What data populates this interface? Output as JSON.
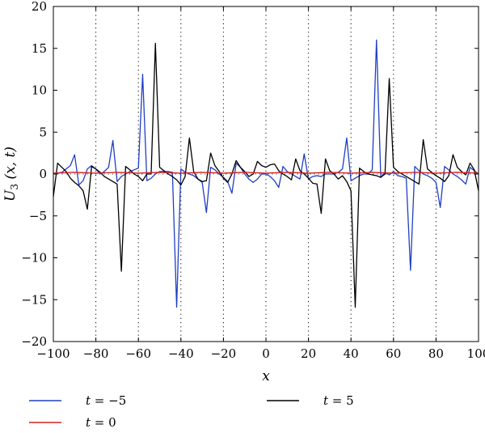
{
  "chart_data": {
    "type": "line",
    "xlabel": "x",
    "ylabel_main": "U",
    "ylabel_sub": "3",
    "ylabel_args": " (x, t)",
    "xlim": [
      -100,
      100
    ],
    "ylim": [
      -20,
      20
    ],
    "xticks": [
      -100,
      -80,
      -60,
      -40,
      -20,
      0,
      20,
      40,
      60,
      80,
      100
    ],
    "yticks": [
      -20,
      -15,
      -10,
      -5,
      0,
      5,
      10,
      15,
      20
    ],
    "grid": "vertical dotted lines at x ticks",
    "legend": [
      {
        "series": 0,
        "prefix": "t",
        "value": " = −5"
      },
      {
        "series": 2,
        "prefix": "t",
        "value": " = 5"
      },
      {
        "series": 1,
        "prefix": "t",
        "value": " = 0"
      }
    ],
    "series": [
      {
        "color": "#1f3fc4",
        "x": [
          -100,
          -96,
          -94,
          -92,
          -90,
          -88,
          -86,
          -84,
          -82,
          -80,
          -78,
          -76,
          -74,
          -72,
          -70,
          -68,
          -66,
          -64,
          -62,
          -60,
          -58,
          -56,
          -54,
          -52,
          -50,
          -48,
          -46,
          -44,
          -42,
          -40,
          -38,
          -36,
          -34,
          -32,
          -30,
          -28,
          -26,
          -24,
          -22,
          -20,
          -18,
          -16,
          -14,
          -12,
          -10,
          -8,
          -6,
          -4,
          -2,
          0,
          2,
          4,
          6,
          8,
          10,
          12,
          14,
          16,
          18,
          20,
          22,
          24,
          26,
          28,
          30,
          32,
          34,
          36,
          38,
          40,
          42,
          44,
          46,
          48,
          50,
          52,
          54,
          56,
          58,
          60,
          62,
          64,
          66,
          68,
          70,
          72,
          74,
          76,
          78,
          80,
          82,
          84,
          86,
          88,
          90,
          92,
          94,
          96,
          98,
          100
        ],
        "y": [
          0.0,
          0.2,
          0.6,
          1.0,
          2.3,
          -1.3,
          -0.8,
          0.6,
          1.0,
          0.6,
          0.0,
          0.3,
          0.8,
          4.0,
          -0.9,
          -0.3,
          0.0,
          0.3,
          0.5,
          0.7,
          11.9,
          -0.8,
          -0.5,
          0.0,
          0.3,
          0.3,
          0.3,
          0.2,
          -15.9,
          0.6,
          0.2,
          0.0,
          -0.2,
          -0.6,
          -1.0,
          -4.6,
          0.8,
          0.5,
          0.0,
          -0.4,
          -0.9,
          -2.3,
          1.3,
          0.8,
          0.0,
          -0.6,
          -1.0,
          -0.6,
          0.0,
          0.0,
          -0.3,
          -0.8,
          -1.6,
          0.9,
          0.3,
          0.0,
          -0.3,
          -0.6,
          2.4,
          -0.6,
          -0.3,
          -0.2,
          -0.3,
          0.0,
          0.0,
          0.0,
          0.2,
          0.6,
          4.3,
          -0.8,
          -0.5,
          -0.2,
          0.0,
          0.0,
          0.5,
          16.0,
          -0.4,
          0.2,
          -0.1,
          0.3,
          -0.2,
          -0.3,
          -0.5,
          -11.5,
          0.9,
          0.4,
          0.0,
          -0.2,
          -0.5,
          -1.0,
          -4.0,
          0.9,
          0.5,
          0.0,
          -0.3,
          -0.7,
          -1.2,
          0.8,
          0.4,
          0.0
        ]
      },
      {
        "color": "#d42020",
        "x": [
          -100,
          -90,
          -80,
          -70,
          -60,
          -50,
          -40,
          -30,
          -20,
          -10,
          0,
          10,
          20,
          30,
          40,
          50,
          60,
          70,
          80,
          90,
          100
        ],
        "y": [
          0.1,
          0.2,
          0.1,
          0.2,
          0.1,
          0.2,
          0.1,
          0.2,
          0.1,
          0.2,
          0.1,
          0.2,
          0.1,
          0.2,
          0.1,
          0.2,
          0.1,
          0.2,
          0.1,
          0.2,
          0.1
        ]
      },
      {
        "color": "#000000",
        "x": [
          -100,
          -98,
          -96,
          -94,
          -92,
          -90,
          -88,
          -86,
          -84,
          -82,
          -80,
          -78,
          -76,
          -74,
          -72,
          -70,
          -68,
          -66,
          -64,
          -62,
          -60,
          -58,
          -56,
          -54,
          -52,
          -50,
          -48,
          -46,
          -44,
          -42,
          -40,
          -38,
          -36,
          -34,
          -32,
          -30,
          -28,
          -26,
          -24,
          -22,
          -20,
          -18,
          -16,
          -14,
          -12,
          -10,
          -8,
          -6,
          -4,
          -2,
          0,
          2,
          4,
          6,
          8,
          10,
          12,
          14,
          16,
          18,
          20,
          22,
          24,
          26,
          28,
          30,
          32,
          34,
          36,
          38,
          40,
          42,
          44,
          46,
          48,
          50,
          52,
          54,
          56,
          58,
          60,
          62,
          64,
          66,
          68,
          70,
          72,
          74,
          76,
          78,
          80,
          82,
          84,
          86,
          88,
          90,
          92,
          94,
          96,
          98,
          100
        ],
        "y": [
          -2.7,
          1.3,
          0.8,
          0.3,
          -0.5,
          -1.0,
          -1.4,
          -2.0,
          -4.2,
          0.9,
          0.6,
          0.2,
          -0.3,
          -0.6,
          -0.9,
          -1.2,
          -11.6,
          0.9,
          0.5,
          0.0,
          -0.3,
          -0.8,
          0.0,
          0.0,
          15.6,
          0.8,
          0.4,
          0.0,
          -0.3,
          -0.7,
          -1.3,
          -0.3,
          4.3,
          0.3,
          -0.6,
          -0.9,
          -0.8,
          2.5,
          1.0,
          0.3,
          -0.5,
          -1.0,
          0.0,
          1.6,
          0.8,
          0.3,
          -0.3,
          0.0,
          1.5,
          1.0,
          0.8,
          1.1,
          1.2,
          0.4,
          0.0,
          -0.3,
          -0.7,
          1.8,
          0.4,
          0.0,
          -0.5,
          -1.1,
          -1.2,
          -4.7,
          1.8,
          0.4,
          0.0,
          -0.6,
          -0.2,
          -0.9,
          -2.0,
          -15.9,
          0.7,
          0.3,
          0.0,
          -0.1,
          -0.2,
          -0.4,
          0.0,
          11.4,
          0.8,
          0.3,
          0.0,
          -0.3,
          -0.6,
          -0.9,
          -1.2,
          4.1,
          0.6,
          0.2,
          -0.2,
          -0.5,
          -0.9,
          -0.2,
          2.3,
          0.8,
          0.3,
          -0.1,
          1.3,
          0.5,
          -2.0
        ]
      }
    ]
  }
}
